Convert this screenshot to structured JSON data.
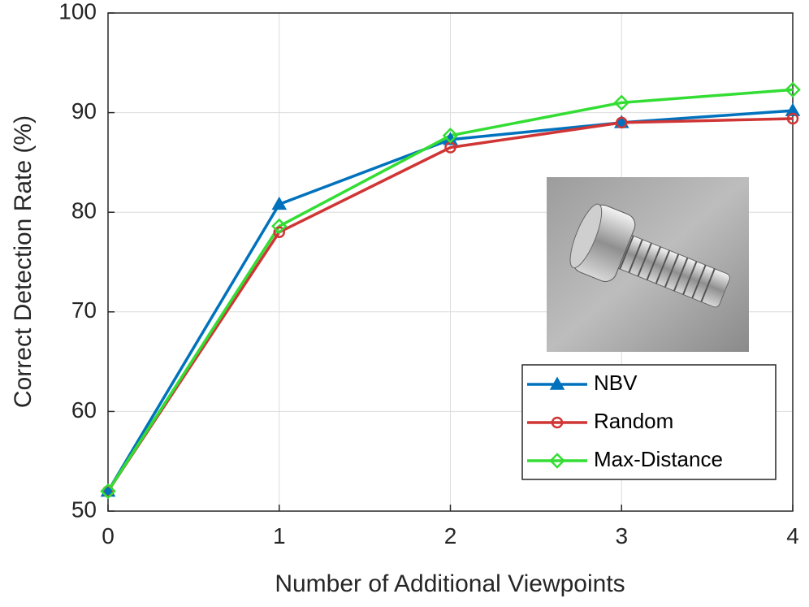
{
  "chart_data": {
    "type": "line",
    "xlabel": "Number of Additional Viewpoints",
    "ylabel": "Correct Detection Rate (%)",
    "x": [
      0,
      1,
      2,
      3,
      4
    ],
    "series": [
      {
        "name": "NBV",
        "color": "#0072bd",
        "marker": "triangle",
        "values": [
          52,
          80.8,
          87.3,
          89,
          90.2
        ]
      },
      {
        "name": "Random",
        "color": "#d03535",
        "marker": "circle",
        "values": [
          52,
          78,
          86.5,
          89,
          89.4
        ]
      },
      {
        "name": "Max-Distance",
        "color": "#33dd33",
        "marker": "diamond",
        "values": [
          52,
          78.6,
          87.7,
          91,
          92.3
        ]
      }
    ],
    "xlim": [
      0,
      4
    ],
    "xticks": [
      0,
      1,
      2,
      3,
      4
    ],
    "ylim": [
      50,
      100
    ],
    "yticks": [
      50,
      60,
      70,
      80,
      90,
      100
    ],
    "grid": true,
    "legend": "southeast"
  }
}
